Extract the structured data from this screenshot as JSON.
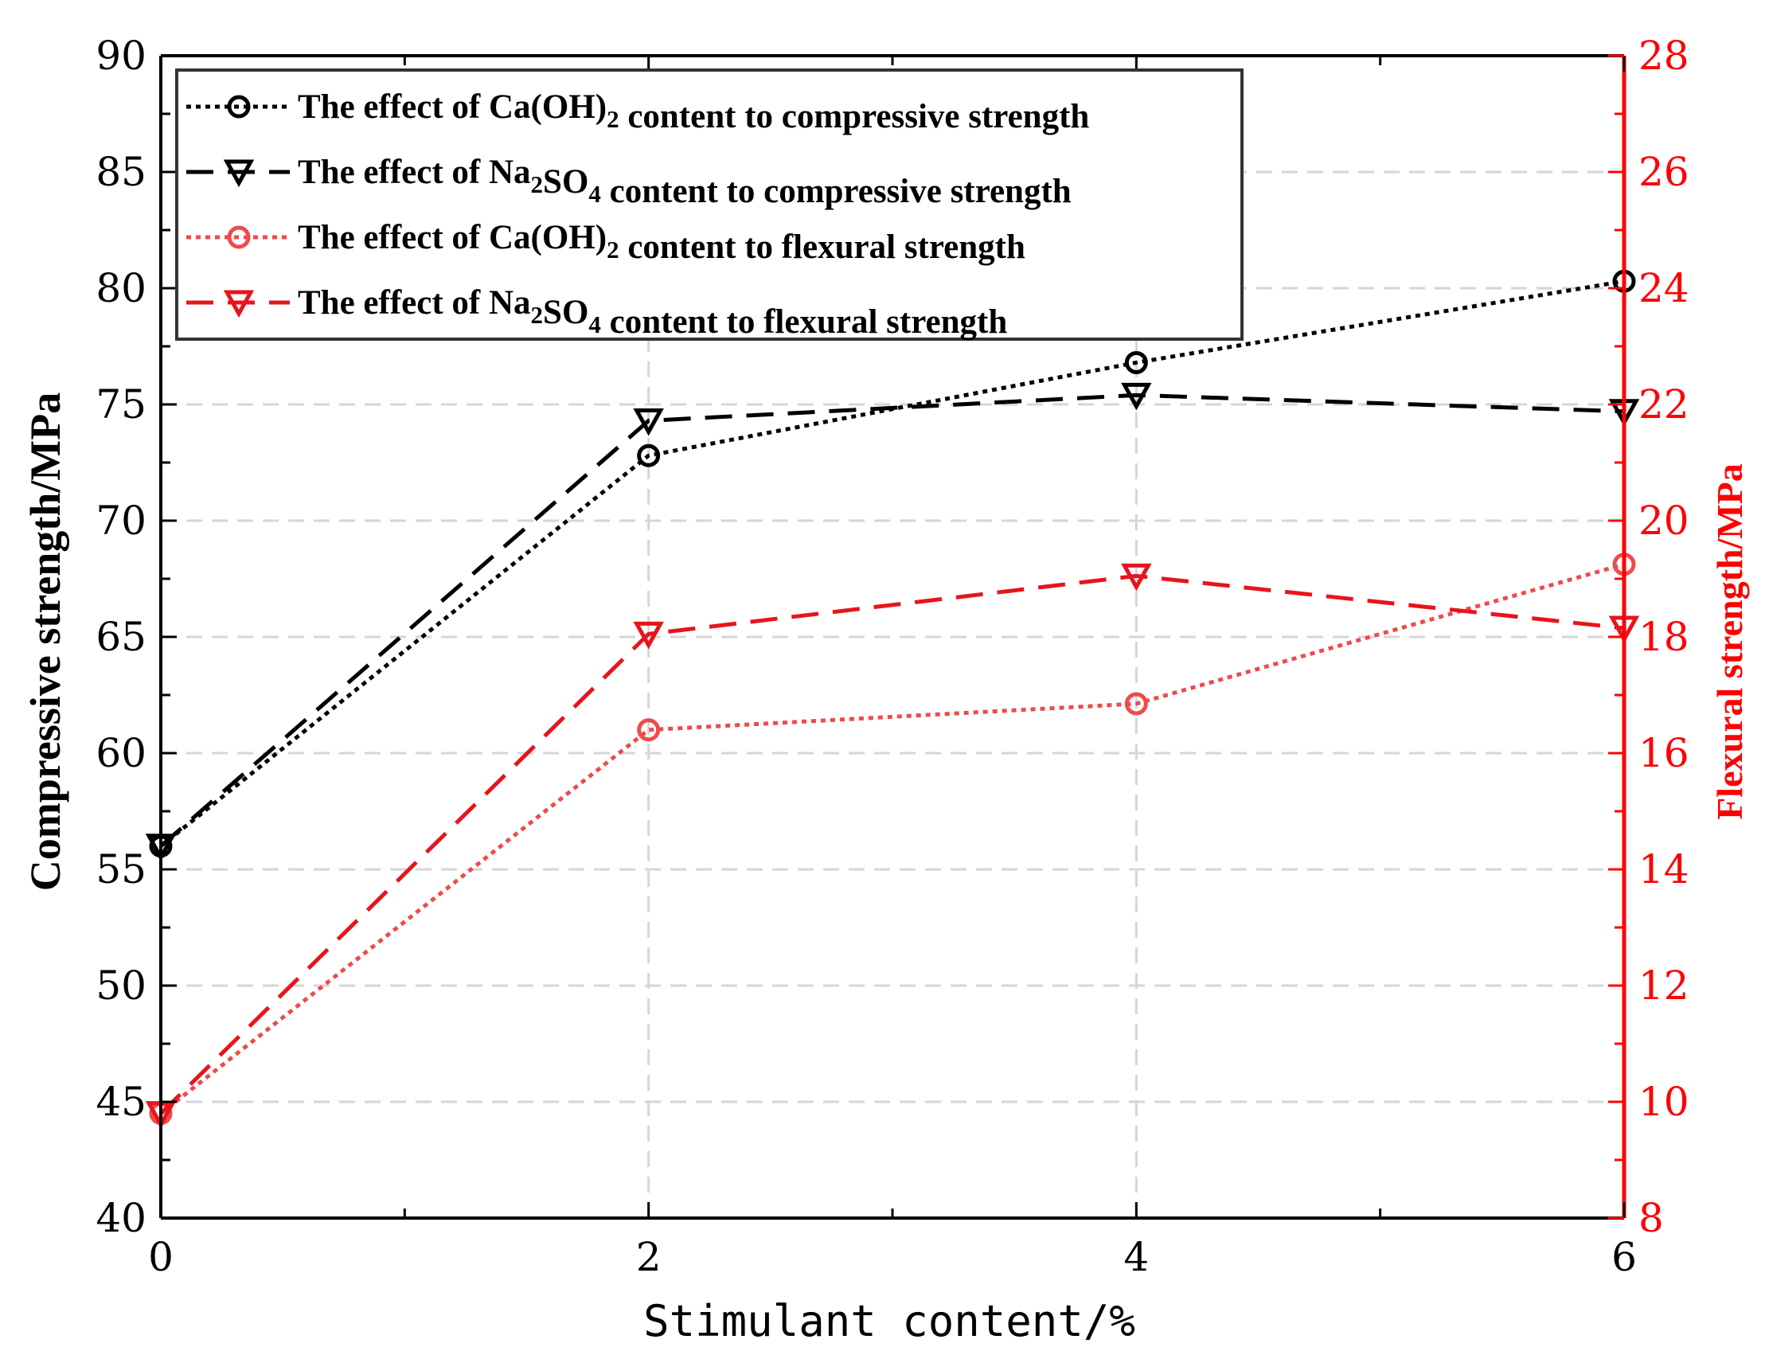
{
  "chart_data": {
    "type": "line",
    "dual_axis": true,
    "xlabel": "Stimulant content/%",
    "ylabel_left": "Compressive strength/MPa",
    "ylabel_right": "Flexural strength/MPa",
    "x": [
      0,
      2,
      4,
      6
    ],
    "xlim": [
      0,
      6
    ],
    "xticks": [
      0,
      2,
      4,
      6
    ],
    "ylim_left": [
      40,
      90
    ],
    "yticks_left": [
      40,
      45,
      50,
      55,
      60,
      65,
      70,
      75,
      80,
      85,
      90
    ],
    "ylim_right": [
      8,
      28
    ],
    "yticks_right": [
      8,
      10,
      12,
      14,
      16,
      18,
      20,
      22,
      24,
      26,
      28
    ],
    "grid": true,
    "legend_position": "top-left",
    "colors": {
      "compressive": "#000000",
      "flexural_dash": "#e8141c",
      "flexural_dot": "#f04a4a",
      "right_axis": "#ff0000"
    },
    "series": [
      {
        "name": "The effect of Ca(OH)2 content to compressive strength",
        "legend": {
          "pre": "The effect of Ca(OH)",
          "sub1": "2",
          "mid": "",
          "sub2": "",
          "post": " content to compressive strength"
        },
        "axis": "left",
        "values": [
          56.0,
          72.8,
          76.8,
          80.3
        ],
        "marker": "circle",
        "line": "dotted",
        "color": "#000000"
      },
      {
        "name": "The effect of Na2SO4 content to compressive strength",
        "legend": {
          "pre": "The effect of Na",
          "sub1": "2",
          "mid": "SO",
          "sub2": "4",
          "post": " content to compressive strength"
        },
        "axis": "left",
        "values": [
          56.0,
          74.3,
          75.4,
          74.7
        ],
        "marker": "triangle-down",
        "line": "dashed",
        "color": "#000000"
      },
      {
        "name": "The effect of Ca(OH)2 content to flexural strength",
        "legend": {
          "pre": "The effect of Ca(OH)",
          "sub1": "2",
          "mid": "",
          "sub2": "",
          "post": " content to flexural strength"
        },
        "axis": "right",
        "values": [
          9.8,
          16.4,
          16.85,
          19.25
        ],
        "marker": "circle",
        "line": "dotted",
        "color": "#f04a4a"
      },
      {
        "name": "The effect of Na2SO4 content to flexural strength",
        "legend": {
          "pre": "The effect of Na",
          "sub1": "2",
          "mid": "SO",
          "sub2": "4",
          "post": " content to flexural strength"
        },
        "axis": "right",
        "values": [
          9.8,
          18.05,
          19.05,
          18.15
        ],
        "marker": "triangle-down",
        "line": "dashed",
        "color": "#e8141c"
      }
    ]
  }
}
